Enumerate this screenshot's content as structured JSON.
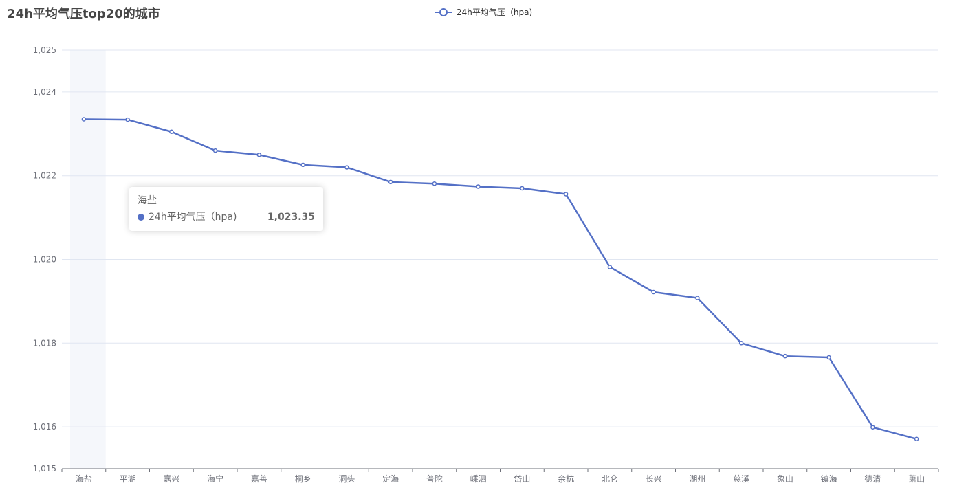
{
  "title": "24h平均气压top20的城市",
  "legend": {
    "label": "24h平均气压（hpa)"
  },
  "tooltip": {
    "category": "海盐",
    "series_name": "24h平均气压（hpa)",
    "value_text": "1,023.35"
  },
  "colors": {
    "series": "#5470c6",
    "title": "#464646",
    "axis_label": "#6e7079",
    "grid_line": "#e0e6f1",
    "axis_line": "#6e7079",
    "highlight_band": "#f5f7fb"
  },
  "chart_data": {
    "type": "line",
    "title": "24h平均气压top20的城市",
    "xlabel": "",
    "ylabel": "",
    "categories": [
      "海盐",
      "平湖",
      "嘉兴",
      "海宁",
      "嘉善",
      "桐乡",
      "洞头",
      "定海",
      "普陀",
      "嵊泗",
      "岱山",
      "余杭",
      "北仑",
      "长兴",
      "湖州",
      "慈溪",
      "象山",
      "镇海",
      "德清",
      "萧山"
    ],
    "series": [
      {
        "name": "24h平均气压（hpa)",
        "values": [
          1023.35,
          1023.34,
          1023.05,
          1022.6,
          1022.5,
          1022.26,
          1022.2,
          1021.85,
          1021.81,
          1021.74,
          1021.7,
          1021.56,
          1019.82,
          1019.22,
          1019.08,
          1018.0,
          1017.69,
          1017.66,
          1015.99,
          1015.71
        ]
      }
    ],
    "ylim": [
      1015,
      1025
    ],
    "y_tick_labels": [
      "1,015",
      "1,016",
      "1,018",
      "1,020",
      "1,022",
      "1,024",
      "1,025"
    ],
    "y_tick_values": [
      1015,
      1016,
      1018,
      1020,
      1022,
      1024,
      1025
    ],
    "grid": true,
    "legend_position": "top-center",
    "highlighted_category": "海盐"
  }
}
